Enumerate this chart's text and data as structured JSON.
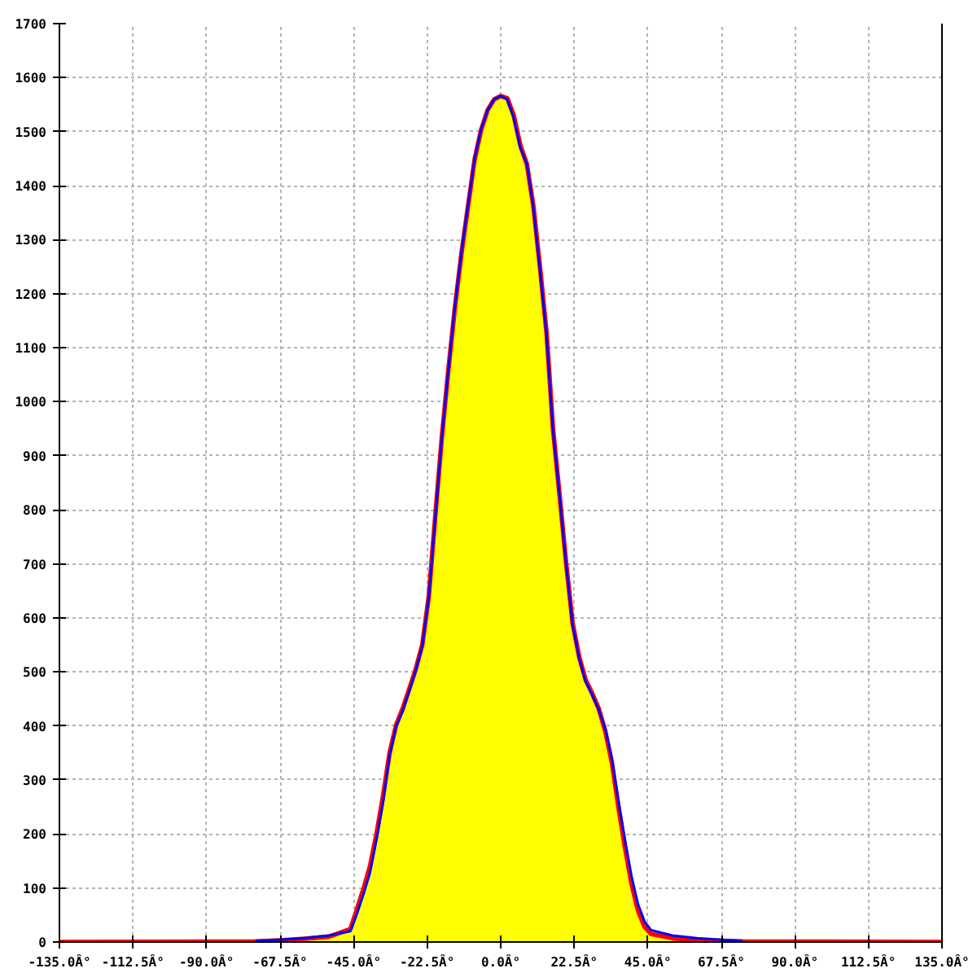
{
  "chart_data": {
    "type": "line",
    "xlim": [
      -135,
      135
    ],
    "ylim": [
      0,
      1700
    ],
    "xticks": [
      {
        "value": -135,
        "label": "-135.0Â°"
      },
      {
        "value": -112.5,
        "label": "-112.5Â°"
      },
      {
        "value": -90,
        "label": "-90.0Â°"
      },
      {
        "value": -67.5,
        "label": "-67.5Â°"
      },
      {
        "value": -45,
        "label": "-45.0Â°"
      },
      {
        "value": -22.5,
        "label": "-22.5Â°"
      },
      {
        "value": 0,
        "label": "0.0Â°"
      },
      {
        "value": 22.5,
        "label": "22.5Â°"
      },
      {
        "value": 45,
        "label": "45.0Â°"
      },
      {
        "value": 67.5,
        "label": "67.5Â°"
      },
      {
        "value": 90,
        "label": "90.0Â°"
      },
      {
        "value": 112.5,
        "label": "112.5Â°"
      },
      {
        "value": 135,
        "label": "135.0Â°"
      }
    ],
    "yticks": [
      0,
      100,
      200,
      300,
      400,
      500,
      600,
      700,
      800,
      900,
      1000,
      1100,
      1200,
      1300,
      1400,
      1500,
      1600,
      1700
    ],
    "grid": true,
    "line_style": "solid",
    "series": [
      {
        "type": "area",
        "color": "#ffff00",
        "x": [
          -67.5,
          -60,
          -52.5,
          -46,
          -44,
          -42,
          -40,
          -38,
          -36,
          -34,
          -32,
          -30,
          -28,
          -26,
          -24,
          -22,
          -20,
          -18,
          -16,
          -14,
          -12,
          -10,
          -8,
          -6,
          -4,
          -2,
          0,
          2,
          4,
          6,
          8,
          10,
          12,
          14,
          16,
          18,
          20,
          22,
          24,
          26,
          28,
          30,
          32,
          34,
          36,
          38,
          40,
          42,
          44,
          46,
          52.5,
          60,
          67.5
        ],
        "values": [
          3,
          6,
          10,
          24,
          60,
          98,
          140,
          200,
          270,
          350,
          402,
          432,
          468,
          505,
          550,
          640,
          790,
          935,
          1060,
          1175,
          1275,
          1362,
          1448,
          1503,
          1540,
          1560,
          1566,
          1562,
          1530,
          1475,
          1440,
          1362,
          1250,
          1130,
          950,
          828,
          702,
          590,
          528,
          485,
          460,
          432,
          390,
          332,
          250,
          175,
          108,
          58,
          28,
          15,
          7,
          3,
          2
        ]
      },
      {
        "color": "#ff0000",
        "x": [
          -135,
          -75,
          -67.5,
          -60,
          -52.5,
          -46,
          -44,
          -42,
          -40,
          -38,
          -36,
          -34,
          -32,
          -30,
          -28,
          -26,
          -24,
          -22,
          -20,
          -18,
          -16,
          -14,
          -12,
          -10,
          -8,
          -6,
          -4,
          -2,
          0,
          2,
          4,
          6,
          8,
          10,
          12,
          14,
          16,
          18,
          20,
          22,
          24,
          26,
          28,
          30,
          32,
          34,
          36,
          38,
          40,
          42,
          44,
          46,
          52.5,
          60,
          67.5,
          74,
          135
        ],
        "values": [
          0,
          1,
          3,
          6,
          10,
          24,
          60,
          98,
          140,
          200,
          270,
          350,
          402,
          432,
          468,
          505,
          550,
          640,
          790,
          935,
          1060,
          1175,
          1275,
          1362,
          1448,
          1503,
          1540,
          1560,
          1566,
          1562,
          1530,
          1475,
          1440,
          1362,
          1250,
          1130,
          950,
          828,
          702,
          590,
          528,
          485,
          460,
          432,
          390,
          332,
          250,
          175,
          108,
          58,
          28,
          15,
          7,
          3,
          2,
          1,
          0
        ]
      },
      {
        "color": "#0000ff",
        "x": [
          -75,
          -67.5,
          -60,
          -52.5,
          -46,
          -44,
          -42,
          -40,
          -38,
          -36,
          -34,
          -32,
          -30,
          -28,
          -26,
          -24,
          -22,
          -20,
          -18,
          -16,
          -14,
          -12,
          -10,
          -8,
          -6,
          -4,
          -2,
          0,
          2,
          4,
          6,
          8,
          10,
          12,
          14,
          16,
          18,
          20,
          22,
          24,
          26,
          28,
          30,
          32,
          34,
          36,
          38,
          40,
          42,
          44,
          46,
          52.5,
          60,
          67.5,
          74
        ],
        "values": [
          2,
          4,
          7,
          12,
          20,
          52,
          88,
          128,
          190,
          258,
          345,
          399,
          427,
          464,
          502,
          548,
          638,
          787,
          934,
          1061,
          1178,
          1278,
          1365,
          1450,
          1505,
          1540,
          1560,
          1566,
          1560,
          1525,
          1470,
          1440,
          1360,
          1245,
          1125,
          947,
          826,
          700,
          587,
          525,
          482,
          457,
          430,
          395,
          340,
          262,
          190,
          122,
          70,
          38,
          22,
          12,
          7,
          4,
          2
        ]
      }
    ]
  }
}
